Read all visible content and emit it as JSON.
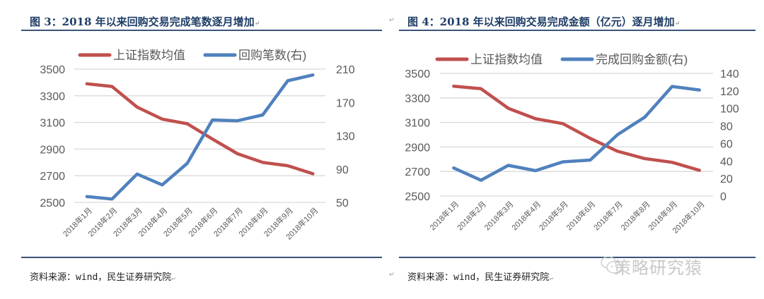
{
  "figures": [
    {
      "title": "图 3：2018 年以来回购交易完成笔数逐月增加",
      "source": "资料来源：wind，民生证券研究院"
    },
    {
      "title": "图 4：2018 年以来回购交易完成金额（亿元）逐月增加",
      "source": "资料来源：wind，民生证券研究院"
    }
  ],
  "watermark": "策略研究猿",
  "paragraph_mark": "↵",
  "colors": {
    "red_series": "#c0504d",
    "blue_series": "#4f81bd",
    "grid": "#d9d9d9",
    "axis_text": "#595959",
    "title": "#1f3e66"
  },
  "chart_data": [
    {
      "type": "line",
      "title": "图 3：2018 年以来回购交易完成笔数逐月增加",
      "categories": [
        "2018年1月",
        "2018年2月",
        "2018年3月",
        "2018年4月",
        "2018年5月",
        "2018年6月",
        "2018年7月",
        "2018年8月",
        "2018年9月",
        "2018年10月"
      ],
      "series": [
        {
          "name": "上证指数均值",
          "axis": "left",
          "color": "#c0504d",
          "values": [
            3390,
            3370,
            3215,
            3125,
            3090,
            2975,
            2865,
            2800,
            2775,
            2715
          ]
        },
        {
          "name": "回购笔数(右)",
          "axis": "right",
          "color": "#4f81bd",
          "values": [
            57,
            54,
            84,
            71,
            97,
            149,
            148,
            155,
            196,
            203
          ]
        }
      ],
      "y_left": {
        "ticks": [
          2500,
          2700,
          2900,
          3100,
          3300,
          3500
        ],
        "range": [
          2500,
          3500
        ]
      },
      "y_right": {
        "ticks": [
          50,
          90,
          130,
          170,
          210
        ],
        "range": [
          50,
          210
        ]
      },
      "legend_position": "top",
      "grid": true
    },
    {
      "type": "line",
      "title": "图 4：2018 年以来回购交易完成金额（亿元）逐月增加",
      "categories": [
        "2018年1月",
        "2018年2月",
        "2018年3月",
        "2018年4月",
        "2018年5月",
        "2018年6月",
        "2018年7月",
        "2018年8月",
        "2018年9月",
        "2018年10月"
      ],
      "series": [
        {
          "name": "上证指数均值",
          "axis": "left",
          "color": "#c0504d",
          "values": [
            3395,
            3375,
            3215,
            3130,
            3090,
            2970,
            2865,
            2805,
            2775,
            2710
          ]
        },
        {
          "name": "完成回购金额(右)",
          "axis": "right",
          "color": "#4f81bd",
          "values": [
            32,
            18,
            35,
            29,
            39,
            41,
            70,
            90,
            125,
            121
          ]
        }
      ],
      "y_left": {
        "ticks": [
          2500,
          2700,
          2900,
          3100,
          3300,
          3500
        ],
        "range": [
          2500,
          3500
        ]
      },
      "y_right": {
        "ticks": [
          0,
          20,
          40,
          60,
          80,
          100,
          120,
          140
        ],
        "range": [
          0,
          140
        ]
      },
      "legend_position": "top",
      "grid": true
    }
  ]
}
